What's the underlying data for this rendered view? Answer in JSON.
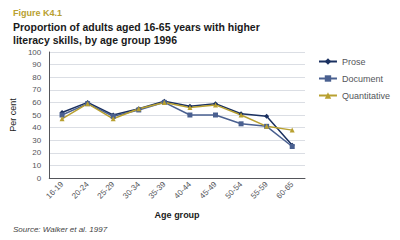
{
  "chart_data": {
    "type": "line",
    "title": "Proportion of adults aged 16-65 years with higher\nliteracy skills, by age group 1996",
    "annotations": [
      {
        "text": "Figure K4.1"
      },
      {
        "text": "Source: Walker et al. 1997"
      }
    ],
    "x_label": "Age group",
    "y_label": "Per cent",
    "categories": [
      "16-19",
      "20-24",
      "25-29",
      "30-34",
      "35-39",
      "40-44",
      "45-49",
      "50-54",
      "55-59",
      "60-65"
    ],
    "series": [
      {
        "name": "Prose",
        "color": "#1a3060",
        "marker": "diamond",
        "values": [
          52,
          60,
          50,
          55,
          61,
          57,
          59,
          51,
          49,
          26
        ]
      },
      {
        "name": "Document",
        "color": "#4a6090",
        "marker": "square",
        "values": [
          50,
          59,
          49,
          54,
          60,
          50,
          50,
          43,
          41,
          25
        ]
      },
      {
        "name": "Quantitative",
        "color": "#b8a030",
        "marker": "triangle",
        "values": [
          47,
          59,
          47,
          55,
          60,
          56,
          58,
          50,
          41,
          38
        ]
      }
    ],
    "ylim": [
      0,
      100
    ],
    "yticks": [
      0,
      10,
      20,
      30,
      40,
      50,
      60,
      70,
      80,
      90,
      100
    ],
    "grid": true,
    "legend": "right"
  }
}
